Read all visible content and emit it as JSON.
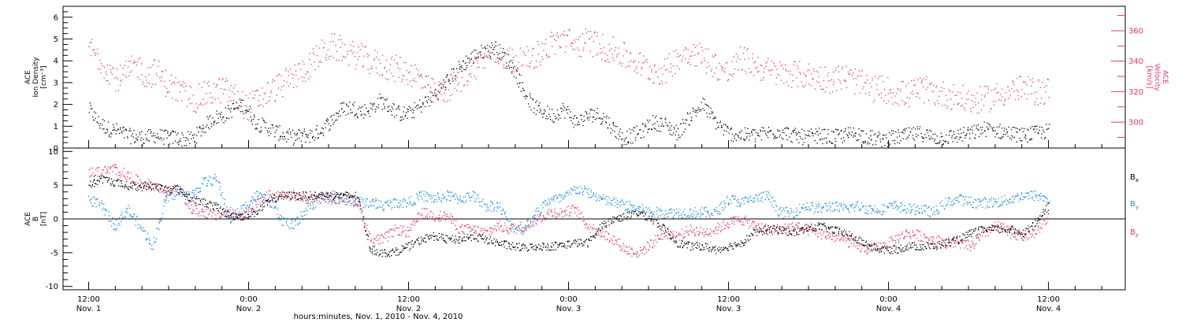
{
  "chart_data": [
    {
      "type": "scatter",
      "panel": "plasma",
      "left_axis": {
        "label_lines": [
          "ACE",
          "Ion Density",
          "[cm⁻³]"
        ],
        "range": [
          0,
          6.5
        ],
        "ticks": [
          "0",
          "1",
          "2",
          "3",
          "4",
          "5",
          "6"
        ],
        "color": "#000000"
      },
      "right_axis": {
        "label_lines": [
          "ACE",
          "Velocity",
          "[km/s]"
        ],
        "range": [
          283,
          376
        ],
        "ticks": [
          "300",
          "320",
          "340",
          "360"
        ],
        "color": "#e8336a"
      },
      "series": [
        {
          "axis": "left",
          "color": "#000000",
          "x": [
            0.0,
            0.03,
            0.06,
            0.09,
            0.12,
            0.15,
            0.18,
            0.21,
            0.24,
            0.27,
            0.3,
            0.33,
            0.36,
            0.39,
            0.42,
            0.45,
            0.48,
            0.5,
            0.52,
            0.55,
            0.58,
            0.61,
            0.64,
            0.67,
            0.7,
            0.73,
            0.76,
            0.79,
            0.82,
            0.85,
            0.88,
            0.91,
            0.94,
            0.97,
            1.0,
            1.03,
            1.06,
            1.09,
            1.12,
            1.15,
            1.18,
            1.21,
            1.24,
            1.27,
            1.3,
            1.33,
            1.36,
            1.39,
            1.42,
            1.45,
            1.48,
            1.5,
            1.52,
            1.55,
            1.58,
            1.61,
            1.64,
            1.67,
            1.7,
            1.73,
            1.76,
            1.8,
            1.84,
            1.88,
            1.92,
            1.96,
            2.0,
            2.04,
            2.08,
            2.12,
            2.16,
            2.2,
            2.24,
            2.28,
            2.32,
            2.36,
            2.4,
            2.44,
            2.48,
            2.52,
            2.56,
            2.6,
            2.64,
            2.68,
            2.72,
            2.76,
            2.8,
            2.84,
            2.88,
            2.92,
            2.96,
            3.0
          ],
          "y": [
            1.8,
            1.2,
            0.9,
            0.8,
            0.6,
            0.5,
            0.5,
            0.6,
            0.5,
            0.5,
            0.4,
            0.5,
            1.0,
            1.4,
            1.5,
            1.8,
            2.0,
            1.7,
            1.2,
            1.0,
            0.8,
            0.6,
            0.5,
            0.6,
            0.6,
            0.9,
            1.3,
            1.8,
            1.9,
            1.7,
            1.8,
            2.2,
            1.9,
            1.6,
            1.6,
            1.9,
            2.2,
            2.6,
            3.1,
            3.6,
            4.0,
            4.3,
            4.5,
            4.6,
            4.2,
            3.6,
            2.6,
            1.9,
            1.7,
            1.5,
            1.8,
            1.6,
            1.2,
            1.4,
            1.6,
            1.4,
            0.9,
            0.5,
            0.6,
            0.8,
            1.2,
            1.1,
            0.7,
            1.5,
            2.0,
            1.2,
            0.7,
            0.6,
            0.6,
            0.7,
            0.8,
            0.6,
            0.5,
            0.6,
            0.5,
            0.6,
            0.7,
            0.5,
            0.4,
            0.5,
            0.6,
            0.7,
            0.5,
            0.5,
            0.6,
            0.7,
            0.9,
            0.8,
            0.7,
            0.6,
            0.7,
            0.8
          ]
        },
        {
          "axis": "right",
          "color": "#e8336a",
          "x": [
            0.0,
            0.03,
            0.06,
            0.09,
            0.12,
            0.15,
            0.18,
            0.21,
            0.24,
            0.27,
            0.3,
            0.33,
            0.36,
            0.39,
            0.42,
            0.45,
            0.48,
            0.5,
            0.52,
            0.55,
            0.58,
            0.61,
            0.64,
            0.67,
            0.7,
            0.73,
            0.76,
            0.79,
            0.82,
            0.85,
            0.88,
            0.91,
            0.94,
            0.97,
            1.0,
            1.03,
            1.06,
            1.09,
            1.12,
            1.15,
            1.18,
            1.21,
            1.24,
            1.27,
            1.3,
            1.33,
            1.36,
            1.39,
            1.42,
            1.45,
            1.48,
            1.5,
            1.52,
            1.55,
            1.58,
            1.61,
            1.64,
            1.67,
            1.7,
            1.73,
            1.76,
            1.8,
            1.84,
            1.88,
            1.92,
            1.96,
            2.0,
            2.04,
            2.08,
            2.12,
            2.16,
            2.2,
            2.24,
            2.28,
            2.32,
            2.36,
            2.4,
            2.44,
            2.48,
            2.52,
            2.56,
            2.6,
            2.64,
            2.68,
            2.72,
            2.76,
            2.8,
            2.84,
            2.88,
            2.92,
            2.96,
            3.0
          ],
          "y": [
            350,
            342,
            335,
            328,
            332,
            338,
            330,
            334,
            326,
            322,
            318,
            315,
            318,
            320,
            322,
            318,
            312,
            310,
            314,
            318,
            322,
            326,
            330,
            334,
            340,
            346,
            350,
            348,
            345,
            343,
            340,
            338,
            336,
            335,
            333,
            330,
            322,
            318,
            322,
            326,
            332,
            338,
            343,
            345,
            343,
            340,
            340,
            344,
            347,
            352,
            355,
            353,
            350,
            353,
            352,
            349,
            347,
            344,
            341,
            337,
            334,
            333,
            343,
            347,
            343,
            337,
            332,
            342,
            338,
            334,
            332,
            332,
            331,
            330,
            328,
            330,
            327,
            322,
            322,
            320,
            318,
            322,
            320,
            318,
            316,
            314,
            315,
            318,
            321,
            322,
            320,
            321
          ]
        }
      ]
    },
    {
      "type": "scatter",
      "panel": "magnetic-field",
      "left_axis": {
        "label_lines": [
          "ACE",
          "B",
          "[nT]"
        ],
        "range": [
          -10.5,
          10.5
        ],
        "ticks": [
          "-10",
          "-5",
          "0",
          "5",
          "10"
        ],
        "color": "#000000"
      },
      "zero_line": true,
      "series": [
        {
          "name": "Bx",
          "label_main": "B",
          "label_sub": "x",
          "color": "#000000",
          "x": [
            0.0,
            0.04,
            0.08,
            0.12,
            0.16,
            0.2,
            0.24,
            0.28,
            0.32,
            0.36,
            0.4,
            0.44,
            0.48,
            0.52,
            0.56,
            0.6,
            0.64,
            0.68,
            0.72,
            0.76,
            0.8,
            0.84,
            0.88,
            0.92,
            0.96,
            1.0,
            1.04,
            1.08,
            1.12,
            1.16,
            1.2,
            1.24,
            1.28,
            1.32,
            1.36,
            1.4,
            1.44,
            1.48,
            1.52,
            1.56,
            1.6,
            1.64,
            1.68,
            1.72,
            1.76,
            1.8,
            1.84,
            1.88,
            1.92,
            1.96,
            2.0,
            2.04,
            2.08,
            2.12,
            2.16,
            2.2,
            2.24,
            2.28,
            2.32,
            2.36,
            2.4,
            2.44,
            2.48,
            2.52,
            2.56,
            2.6,
            2.64,
            2.68,
            2.72,
            2.76,
            2.8,
            2.84,
            2.88,
            2.92,
            2.96,
            3.0
          ],
          "y": [
            5,
            6,
            5.5,
            5,
            4.8,
            5,
            4.5,
            4.5,
            3,
            2.5,
            1.8,
            0.5,
            0.5,
            1,
            2.5,
            3.5,
            3.5,
            3.5,
            3.5,
            3.5,
            3.5,
            3.5,
            -4.5,
            -5,
            -4.8,
            -4,
            -3,
            -2.5,
            -3,
            -3,
            -2.5,
            -3,
            -3.5,
            -4,
            -4.2,
            -4,
            -4,
            -3.8,
            -3.5,
            -3.5,
            -1,
            0,
            0.5,
            1,
            0,
            -1.5,
            -3.5,
            -4,
            -4,
            -4.5,
            -4,
            -3.5,
            -2,
            -1.5,
            -1.5,
            -2,
            -1.5,
            -1,
            -1.5,
            -2,
            -3,
            -4,
            -4.5,
            -4.5,
            -4,
            -4,
            -4,
            -3.5,
            -3,
            -2,
            -1.5,
            -1.5,
            -1.5,
            -2,
            -0.5,
            2
          ]
        },
        {
          "name": "By",
          "label_main": "B",
          "label_sub": "y",
          "color": "#1a8ae0",
          "x": [
            0.0,
            0.04,
            0.08,
            0.12,
            0.16,
            0.2,
            0.24,
            0.28,
            0.32,
            0.36,
            0.4,
            0.44,
            0.48,
            0.52,
            0.56,
            0.6,
            0.64,
            0.68,
            0.72,
            0.76,
            0.8,
            0.84,
            0.88,
            0.92,
            0.96,
            1.0,
            1.04,
            1.08,
            1.12,
            1.16,
            1.2,
            1.24,
            1.28,
            1.32,
            1.36,
            1.4,
            1.44,
            1.48,
            1.52,
            1.56,
            1.6,
            1.64,
            1.68,
            1.72,
            1.76,
            1.8,
            1.84,
            1.88,
            1.92,
            1.96,
            2.0,
            2.04,
            2.08,
            2.12,
            2.16,
            2.2,
            2.24,
            2.28,
            2.32,
            2.36,
            2.4,
            2.44,
            2.48,
            2.52,
            2.56,
            2.6,
            2.64,
            2.68,
            2.72,
            2.76,
            2.8,
            2.84,
            2.88,
            2.92,
            2.96,
            3.0
          ],
          "y": [
            3,
            2,
            -1,
            1.5,
            -1,
            -4,
            3,
            4,
            3.5,
            5.5,
            6,
            0,
            1.5,
            3.5,
            3,
            0,
            -1,
            1.5,
            3,
            3.5,
            3,
            2.5,
            2.5,
            2,
            2.5,
            2.5,
            3.5,
            3,
            3.5,
            3,
            3.5,
            2,
            2,
            -1,
            -1.5,
            1,
            3,
            3,
            4.5,
            4,
            3,
            2.5,
            2,
            1.5,
            1,
            1,
            1,
            1,
            1,
            1,
            3,
            2.5,
            3,
            3.5,
            1,
            1,
            2,
            1.5,
            2,
            1.5,
            2,
            1.5,
            1.5,
            2,
            1.5,
            1.5,
            1,
            2.5,
            3,
            2.5,
            2.5,
            2.5,
            3,
            3.5,
            3.5,
            3
          ]
        },
        {
          "name": "Bz",
          "label_main": "B",
          "label_sub": "z",
          "color": "#e8336a",
          "x": [
            0.0,
            0.04,
            0.08,
            0.12,
            0.16,
            0.2,
            0.24,
            0.28,
            0.32,
            0.36,
            0.4,
            0.44,
            0.48,
            0.52,
            0.56,
            0.6,
            0.64,
            0.68,
            0.72,
            0.76,
            0.8,
            0.84,
            0.88,
            0.92,
            0.96,
            1.0,
            1.04,
            1.08,
            1.12,
            1.16,
            1.2,
            1.24,
            1.28,
            1.32,
            1.36,
            1.4,
            1.44,
            1.48,
            1.52,
            1.56,
            1.6,
            1.64,
            1.68,
            1.72,
            1.76,
            1.8,
            1.84,
            1.88,
            1.92,
            1.96,
            2.0,
            2.04,
            2.08,
            2.12,
            2.16,
            2.2,
            2.24,
            2.28,
            2.32,
            2.36,
            2.4,
            2.44,
            2.48,
            2.52,
            2.56,
            2.6,
            2.64,
            2.68,
            2.72,
            2.76,
            2.8,
            2.84,
            2.88,
            2.92,
            2.96,
            3.0
          ],
          "y": [
            7,
            7,
            7.5,
            6.5,
            5.5,
            5,
            4,
            4.5,
            1.5,
            1,
            0.5,
            1,
            0.5,
            2,
            3.5,
            3.5,
            3.5,
            3,
            3.5,
            3,
            3,
            2.5,
            -3,
            -3,
            -1.5,
            -2,
            1,
            0.5,
            0.5,
            -1.5,
            -1.5,
            -2,
            -1,
            -1.5,
            -1,
            0,
            1,
            1,
            1.5,
            -1,
            -2,
            -3,
            -4.5,
            -5,
            -3.5,
            -2,
            -2.5,
            -1.5,
            -2,
            -1.5,
            -0.5,
            0,
            -1,
            -1.5,
            -1.5,
            -1,
            -1.5,
            -2,
            -2.5,
            -3,
            -4,
            -4.5,
            -4,
            -3,
            -2,
            -2.5,
            -3,
            -3.5,
            -3.5,
            -4,
            -2,
            -1,
            -2,
            -2.5,
            -2,
            0.5
          ]
        }
      ]
    }
  ],
  "x_axis": {
    "title": "hours:minutes, Nov.  1, 2010 - Nov.  4, 2010",
    "range_days": [
      -0.08,
      3.24
    ],
    "tick_labels": [
      {
        "at": 0.0,
        "time": "12:00",
        "date": "Nov. 1"
      },
      {
        "at": 0.5,
        "time": "0:00",
        "date": "Nov. 2"
      },
      {
        "at": 1.0,
        "time": "12:00",
        "date": "Nov. 2"
      },
      {
        "at": 1.5,
        "time": "0:00",
        "date": "Nov. 3"
      },
      {
        "at": 2.0,
        "time": "12:00",
        "date": "Nov. 3"
      },
      {
        "at": 2.5,
        "time": "0:00",
        "date": "Nov. 4"
      },
      {
        "at": 3.0,
        "time": "12:00",
        "date": "Nov. 4"
      }
    ]
  }
}
